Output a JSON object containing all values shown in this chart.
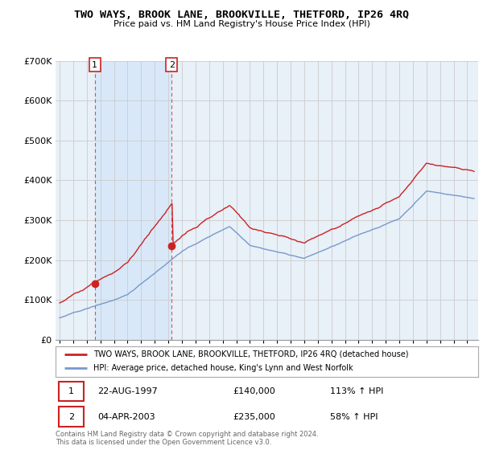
{
  "title": "TWO WAYS, BROOK LANE, BROOKVILLE, THETFORD, IP26 4RQ",
  "subtitle": "Price paid vs. HM Land Registry's House Price Index (HPI)",
  "legend_line1": "TWO WAYS, BROOK LANE, BROOKVILLE, THETFORD, IP26 4RQ (detached house)",
  "legend_line2": "HPI: Average price, detached house, King's Lynn and West Norfolk",
  "footer": "Contains HM Land Registry data © Crown copyright and database right 2024.\nThis data is licensed under the Open Government Licence v3.0.",
  "transaction1_date": "22-AUG-1997",
  "transaction1_price": 140000,
  "transaction2_date": "04-APR-2003",
  "transaction2_price": 235000,
  "red_color": "#cc2222",
  "blue_color": "#7799cc",
  "shade_color": "#d8e8f8",
  "bg_color": "#e8f0f8",
  "grid_color": "#cccccc",
  "ylim": [
    0,
    700000
  ],
  "xlim_start": 1994.7,
  "xlim_end": 2025.8,
  "yticks": [
    0,
    100000,
    200000,
    300000,
    400000,
    500000,
    600000,
    700000
  ],
  "ytick_labels": [
    "£0",
    "£100K",
    "£200K",
    "£300K",
    "£400K",
    "£500K",
    "£600K",
    "£700K"
  ]
}
